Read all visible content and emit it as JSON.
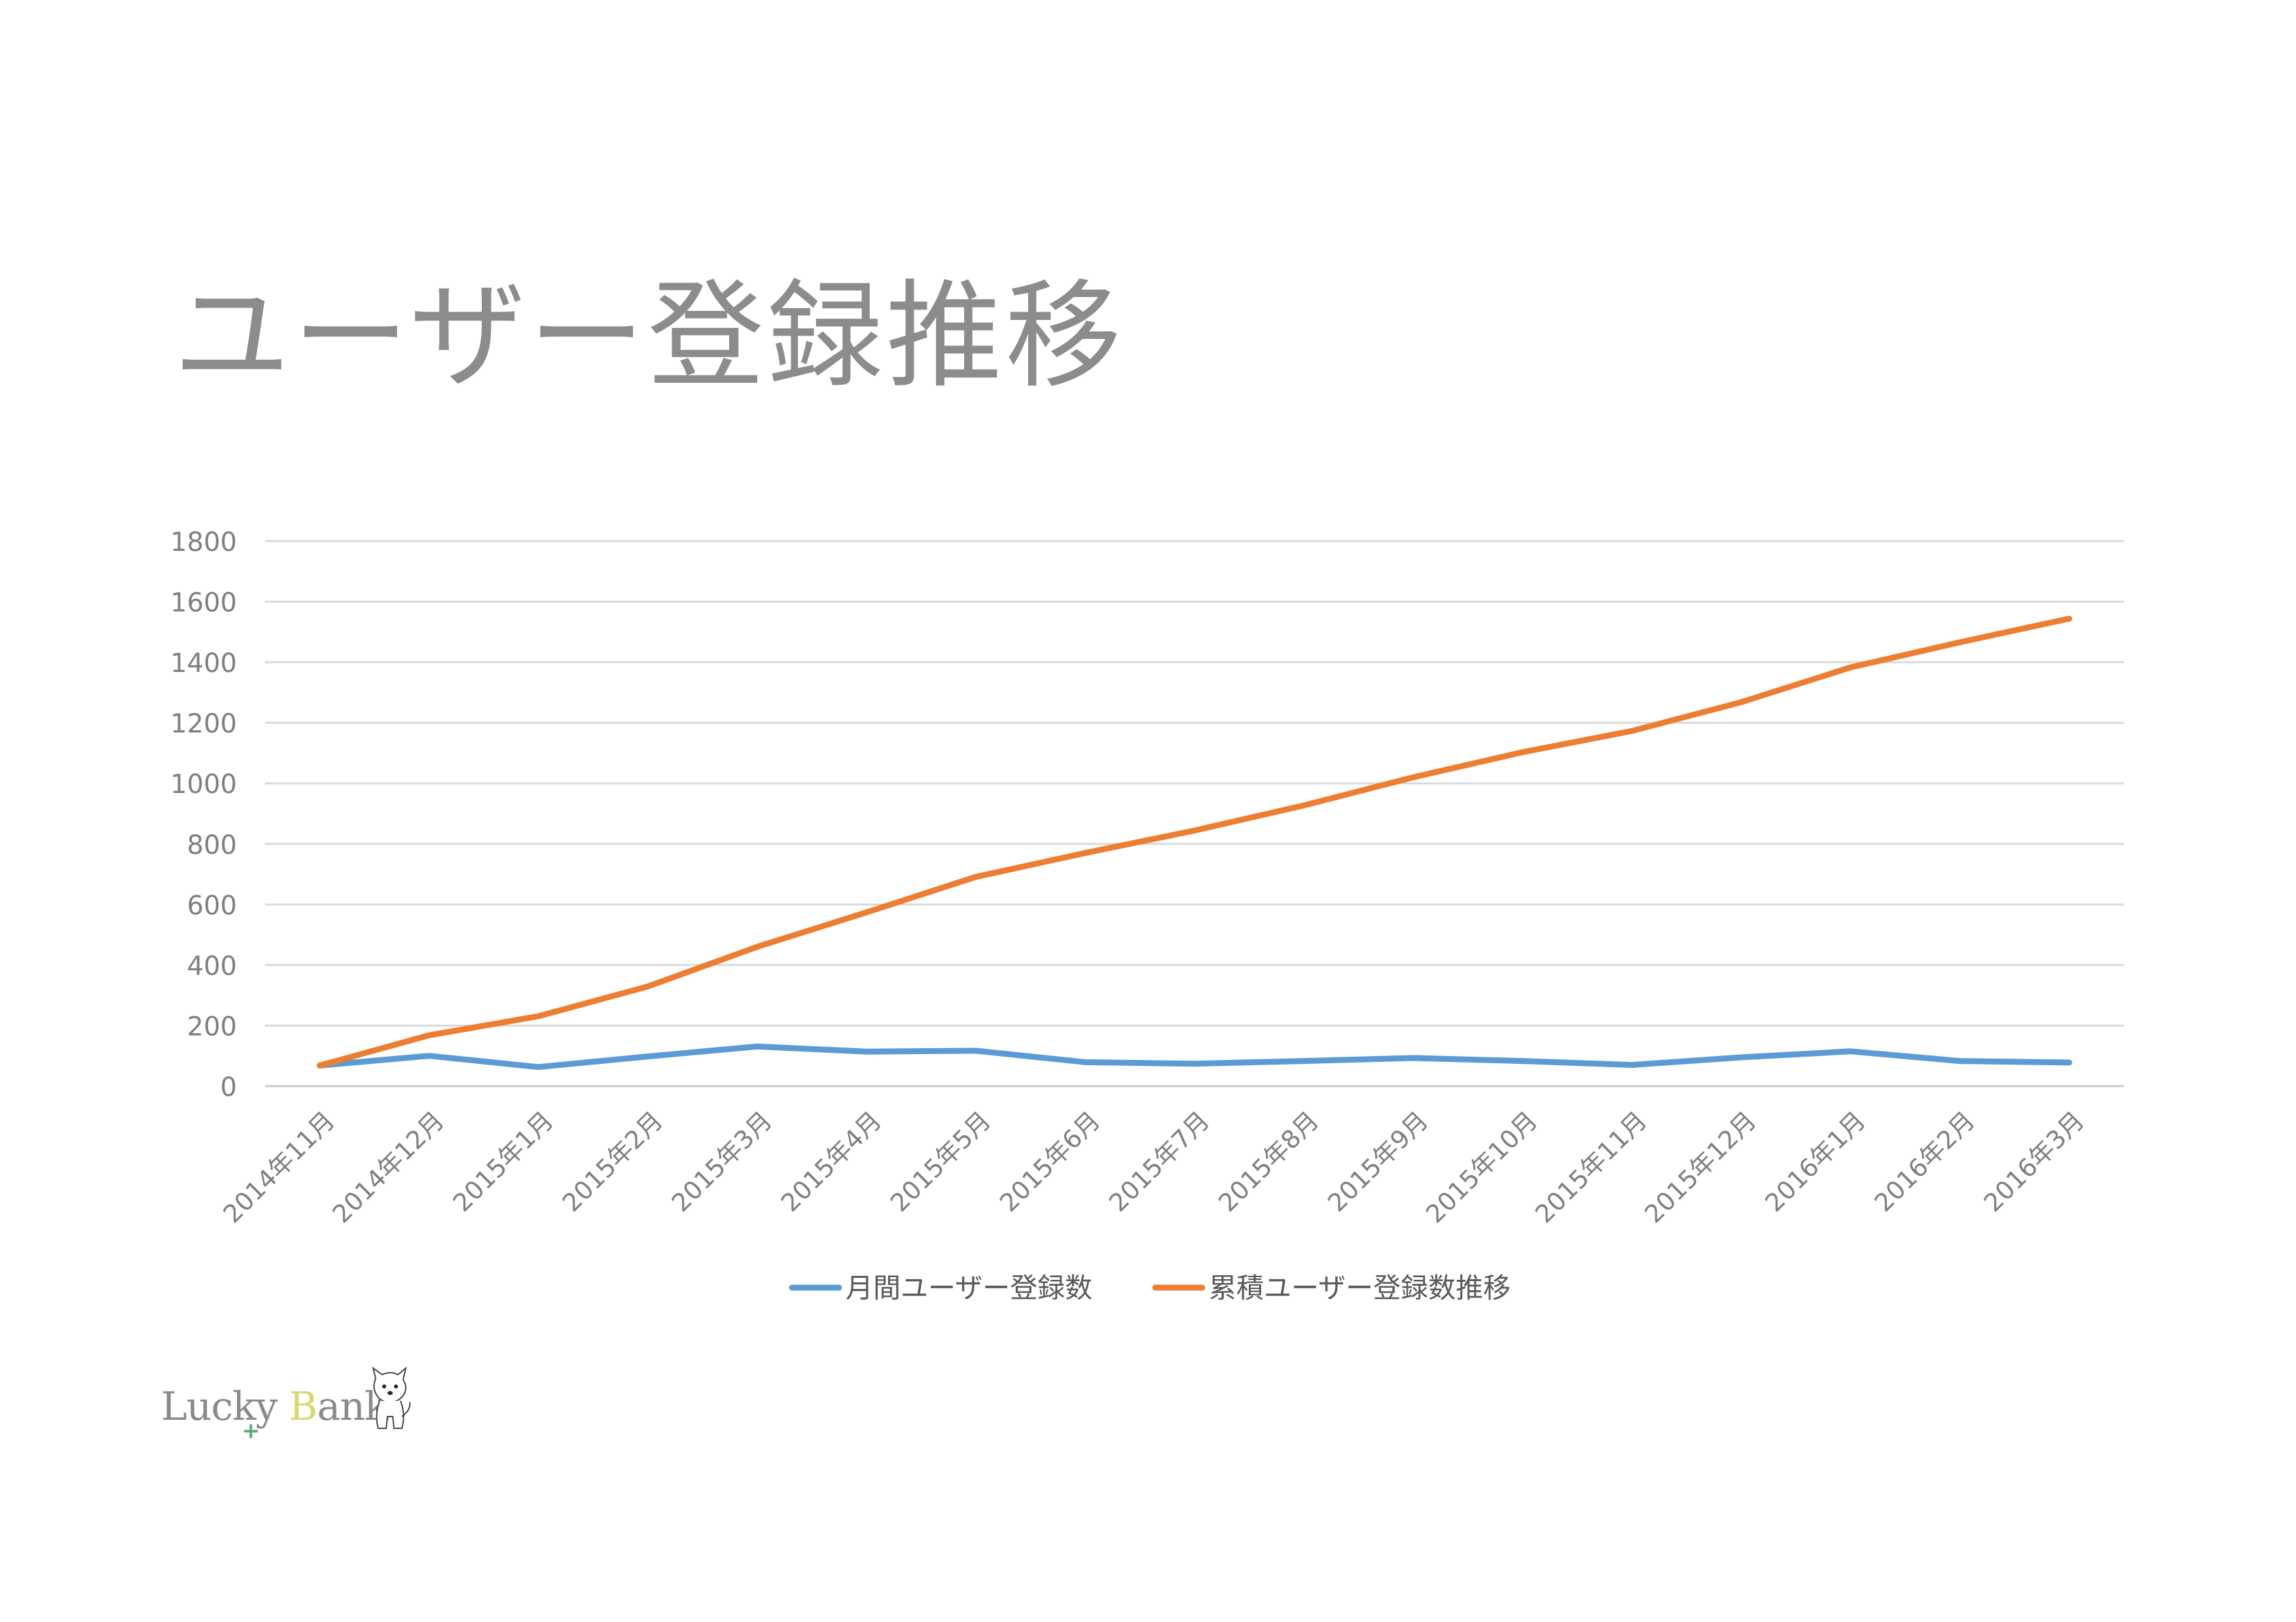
{
  "title": "ユーザー登録推移",
  "logo": {
    "text_a": "Lucky",
    "text_b": "B",
    "text_c": "ank",
    "plus": "+"
  },
  "chart_data": {
    "type": "line",
    "categories": [
      "2014年11月",
      "2014年12月",
      "2015年1月",
      "2015年2月",
      "2015年3月",
      "2015年4月",
      "2015年5月",
      "2015年6月",
      "2015年7月",
      "2015年8月",
      "2015年9月",
      "2015年10月",
      "2015年11月",
      "2015年12月",
      "2016年1月",
      "2016年2月",
      "2016年3月"
    ],
    "ylim": [
      0,
      1800
    ],
    "yticks": [
      "0",
      "200",
      "400",
      "600",
      "800",
      "1000",
      "1200",
      "1400",
      "1600",
      "1800"
    ],
    "grid": true,
    "legend_position": "bottom",
    "series": [
      {
        "name": "月間ユーザー登録数",
        "color": "#5b9bd5",
        "values": [
          68,
          100,
          63,
          98,
          131,
          114,
          117,
          79,
          74,
          83,
          93,
          83,
          70,
          95,
          115,
          83,
          78
        ]
      },
      {
        "name": "累積ユーザー登録数推移",
        "color": "#ed7d31",
        "values": [
          68,
          168,
          231,
          329,
          460,
          574,
          691,
          770,
          844,
          927,
          1020,
          1103,
          1173,
          1268,
          1383,
          1466,
          1544
        ]
      }
    ]
  }
}
